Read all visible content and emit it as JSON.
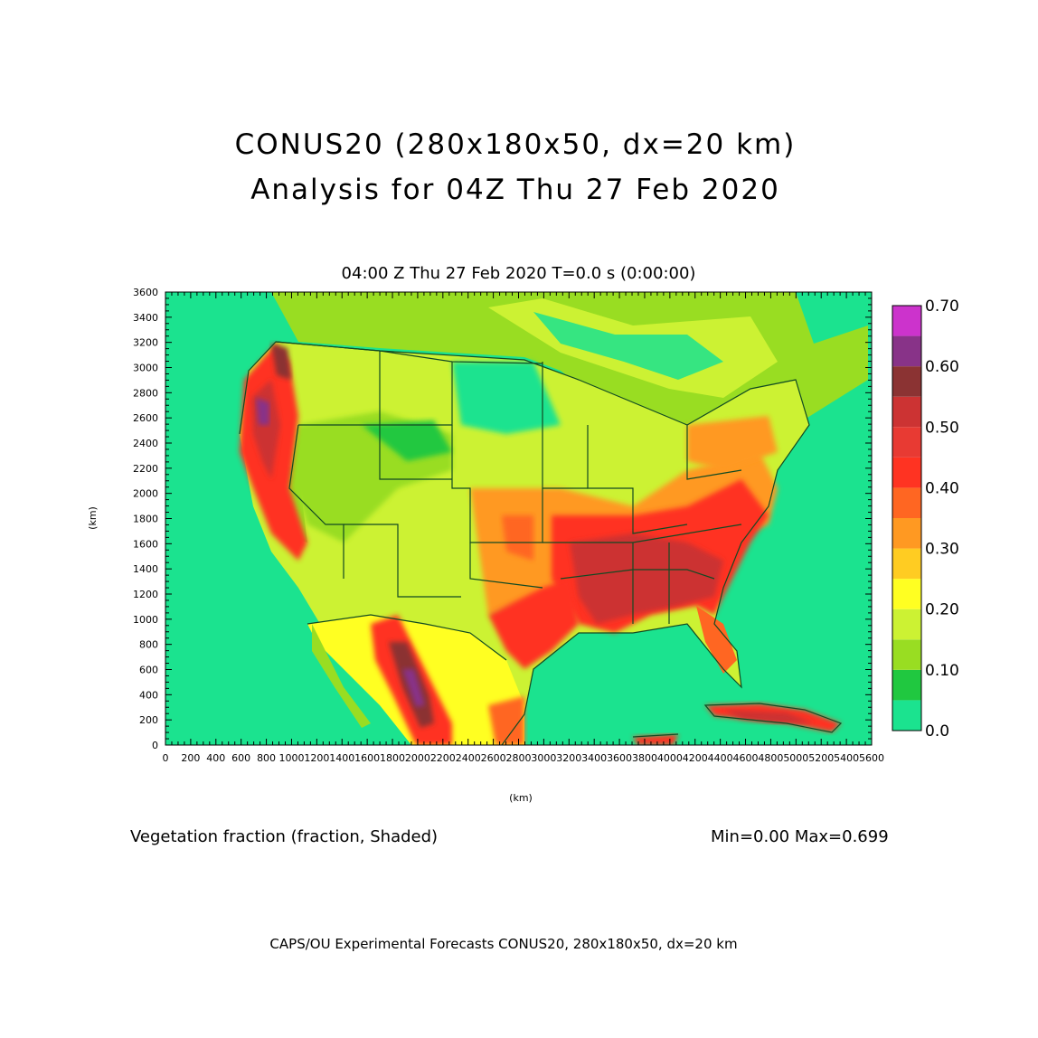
{
  "header": {
    "title_line1": "CONUS20 (280x180x50, dx=20 km)",
    "title_line2": "Analysis for 04Z Thu 27 Feb 2020",
    "subtitle": "04:00 Z Thu 27 Feb 2020    T=0.0 s (0:00:00)"
  },
  "axes": {
    "x_unit": "(km)",
    "y_unit": "(km)",
    "x_ticks": [
      "0",
      "200",
      "400",
      "600",
      "800",
      "1000",
      "1200",
      "1400",
      "1600",
      "1800",
      "2000",
      "2200",
      "2400",
      "2600",
      "2800",
      "3000",
      "3200",
      "3400",
      "3600",
      "3800",
      "4000",
      "4200",
      "4400",
      "4600",
      "4800",
      "5000",
      "5200",
      "5400",
      "5600"
    ],
    "y_ticks": [
      "0",
      "200",
      "400",
      "600",
      "800",
      "1000",
      "1200",
      "1400",
      "1600",
      "1800",
      "2000",
      "2200",
      "2400",
      "2600",
      "2800",
      "3000",
      "3200",
      "3400",
      "3600"
    ],
    "x_range": [
      0,
      5600
    ],
    "y_range": [
      0,
      3600
    ]
  },
  "colorbar": {
    "labels": [
      "0.0",
      "0.10",
      "0.20",
      "0.30",
      "0.40",
      "0.50",
      "0.60",
      "0.70"
    ],
    "levels": [
      0.0,
      0.05,
      0.1,
      0.15,
      0.2,
      0.25,
      0.3,
      0.35,
      0.4,
      0.45,
      0.5,
      0.55,
      0.6,
      0.65,
      0.7
    ],
    "colors": [
      "#1be38f",
      "#20c840",
      "#99dd22",
      "#ccf233",
      "#ffff22",
      "#ffcc22",
      "#ff9922",
      "#ff6622",
      "#ff3322",
      "#e83a33",
      "#cc3333",
      "#8b3333",
      "#883388",
      "#cc33cc"
    ]
  },
  "field": {
    "label": "Vegetation fraction (fraction, Shaded)",
    "minmax": "Min=0.00  Max=0.699"
  },
  "footer": "CAPS/OU Experimental Forecasts  CONUS20, 280x180x50, dx=20 km"
}
